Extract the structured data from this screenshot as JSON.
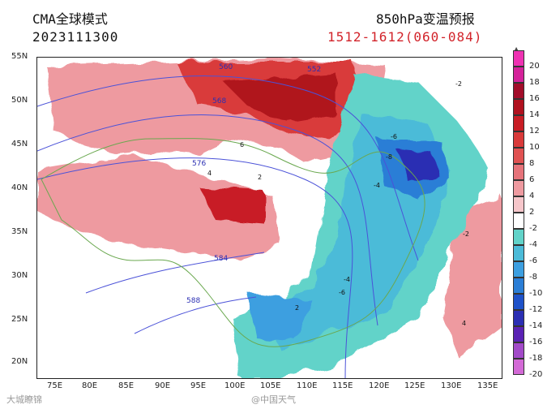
{
  "header": {
    "model": "CMA全球模式",
    "init_time": "2023111300",
    "product": "850hPa变温预报",
    "period": "1512-1612(060-084)"
  },
  "map": {
    "lat_labels": [
      "55N",
      "50N",
      "45N",
      "40N",
      "35N",
      "30N",
      "25N",
      "20N"
    ],
    "lon_labels": [
      "75E",
      "80E",
      "85E",
      "90E",
      "95E",
      "100E",
      "105E",
      "110E",
      "115E",
      "120E",
      "125E",
      "130E",
      "135E"
    ],
    "contour_labels": [
      "560",
      "552",
      "568",
      "576",
      "584",
      "588"
    ],
    "temp_change_labels": [
      "-2",
      "-4",
      "-6",
      "-8",
      "2",
      "4",
      "6",
      "-2",
      "-4",
      "-6",
      "2",
      "4"
    ]
  },
  "colorbar": {
    "levels": [
      "20",
      "18",
      "16",
      "14",
      "12",
      "10",
      "8",
      "6",
      "4",
      "2",
      "-2",
      "-4",
      "-6",
      "-8",
      "-10",
      "-12",
      "-14",
      "-16",
      "-18",
      "-20"
    ],
    "colors": [
      "#ee32b2",
      "#d4229a",
      "#a20d2a",
      "#b0121f",
      "#c81d25",
      "#d93a3a",
      "#e05252",
      "#e6737a",
      "#ee9aa0",
      "#f6c6ca",
      "#ffffff",
      "#62d3c9",
      "#4cbbd8",
      "#3d9fe0",
      "#2b7ed6",
      "#1f52c9",
      "#2b2fb3",
      "#5a22b4",
      "#a24ac8",
      "#d36ad6"
    ]
  },
  "watermarks": {
    "left": "大城瞭锦",
    "center": "@中国天气"
  }
}
